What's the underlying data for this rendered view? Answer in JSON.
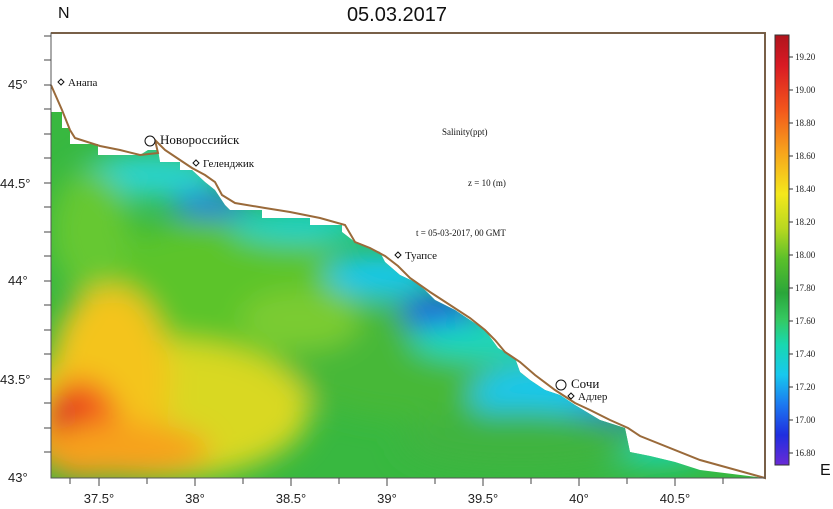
{
  "title": "05.03.2017",
  "north_label": "N",
  "east_label": "E",
  "annotations": {
    "variable": "Salinity(ppt)",
    "depth": "z = 10 (m)",
    "time": "t = 05-03-2017,  00 GMT"
  },
  "axes": {
    "x_ticks": [
      "37.5°",
      "38°",
      "38.5°",
      "39°",
      "39.5°",
      "40°",
      "40.5°"
    ],
    "y_ticks": [
      "45°",
      "44.5°",
      "44°",
      "43.5°",
      "43°"
    ]
  },
  "cities": [
    {
      "name": "Анапа"
    },
    {
      "name": "Новороссийск"
    },
    {
      "name": "Геленджик"
    },
    {
      "name": "Туапсе"
    },
    {
      "name": "Сочи"
    },
    {
      "name": "Адлер"
    }
  ],
  "colorbar": {
    "labels": [
      "19.20",
      "19.00",
      "18.80",
      "18.60",
      "18.40",
      "18.20",
      "18.00",
      "17.80",
      "17.60",
      "17.40",
      "17.20",
      "17.00",
      "16.80"
    ],
    "colors": [
      "#6a2ad6",
      "#1f2ee0",
      "#1c78f0",
      "#17c8ee",
      "#18d8b0",
      "#35c860",
      "#2aa63a",
      "#5cc02a",
      "#b8d820",
      "#f4e81c",
      "#f7a21c",
      "#f2541c",
      "#d81a24",
      "#b0141c"
    ]
  }
}
